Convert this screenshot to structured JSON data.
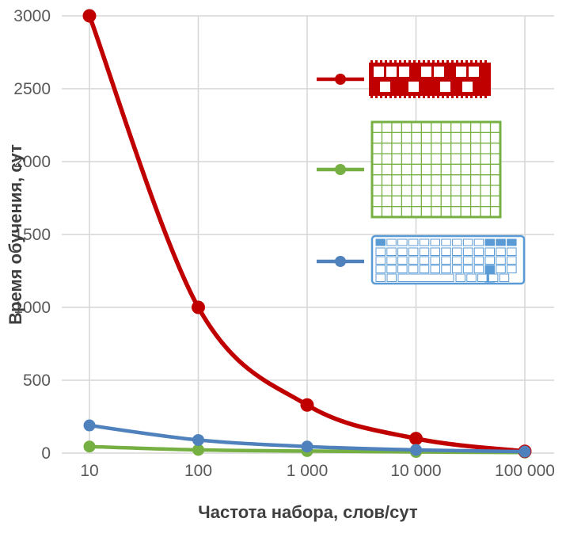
{
  "chart_data": {
    "type": "line",
    "x_scale": "log",
    "x": [
      10,
      100,
      1000,
      10000,
      100000
    ],
    "x_tick_labels": [
      "10",
      "100",
      "1 000",
      "10 000",
      "100 000"
    ],
    "y_ticks": [
      0,
      500,
      1000,
      1500,
      2000,
      2500,
      3000
    ],
    "ylim": [
      0,
      3000
    ],
    "title": "",
    "xlabel": "Частота набора, слов/сут",
    "ylabel": "Время обучения, сут",
    "grid": true,
    "legend_position": "inside-top-right",
    "series": [
      {
        "name": "chord-keyboard",
        "icon": "chord-keyboard-icon",
        "color": "#C00000",
        "values": [
          3000,
          1000,
          330,
          100,
          12
        ]
      },
      {
        "name": "grid-keyboard",
        "icon": "grid-keyboard-icon",
        "color": "#76B043",
        "values": [
          45,
          22,
          14,
          8,
          4
        ]
      },
      {
        "name": "standard-keyboard",
        "icon": "standard-keyboard-icon",
        "color": "#4F81BD",
        "values": [
          190,
          90,
          45,
          22,
          10
        ]
      }
    ]
  },
  "colors": {
    "background": "#FFFFFF",
    "gridline": "#D6D6D6",
    "tick_text": "#595959",
    "axis_title_text": "#3F3F3F",
    "keyboard_icon_stroke": "#5B9BD5",
    "keyboard_icon_fill": "#DCE9F7"
  }
}
